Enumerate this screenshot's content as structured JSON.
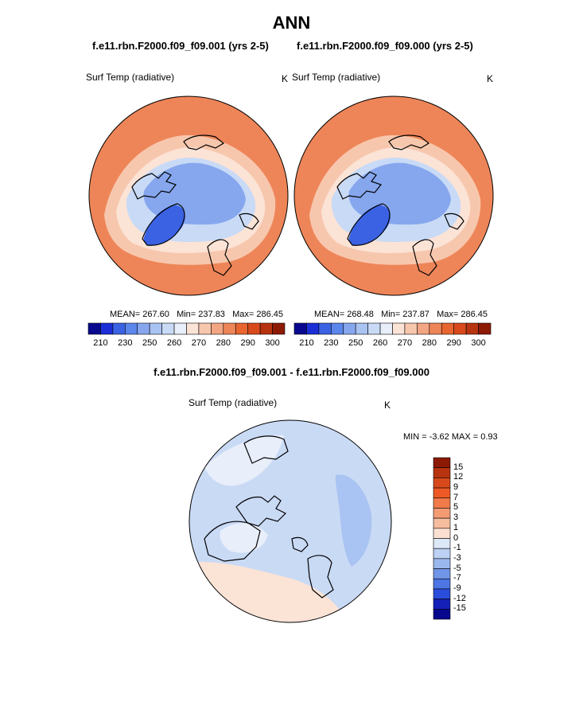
{
  "title": "ANN",
  "panels": [
    {
      "case_title": "f.e11.rbn.F2000.f09_f09.001 (yrs 2-5)",
      "variable": "Surf Temp (radiative)",
      "units": "K",
      "mean_label": "MEAN= 267.60",
      "min_label": "Min= 237.83",
      "max_label": "Max= 286.45"
    },
    {
      "case_title": "f.e11.rbn.F2000.f09_f09.000 (yrs 2-5)",
      "variable": "Surf Temp (radiative)",
      "units": "K",
      "mean_label": "MEAN= 268.48",
      "min_label": "Min= 237.87",
      "max_label": "Max= 286.45"
    }
  ],
  "colorbar": {
    "colors": [
      "#08088e",
      "#1c2fd6",
      "#3a62e3",
      "#5b86ec",
      "#86a7ee",
      "#a9c3f2",
      "#c8daf6",
      "#e8eefa",
      "#fbe3d6",
      "#f7c7ad",
      "#f3a684",
      "#ee8558",
      "#e9652f",
      "#d84a1c",
      "#b8330f",
      "#8c1a05"
    ],
    "ticks": [
      "210",
      "230",
      "250",
      "260",
      "270",
      "280",
      "290",
      "300"
    ]
  },
  "difference": {
    "title": "f.e11.rbn.F2000.f09_f09.001 - f.e11.rbn.F2000.f09_f09.000",
    "variable": "Surf Temp (radiative)",
    "units": "K",
    "minmax_label": "MIN =  -3.62 MAX =   0.93",
    "colorbar_labels": [
      "15",
      "12",
      "9",
      "7",
      "5",
      "3",
      "1",
      "0",
      "-1",
      "-3",
      "-5",
      "-7",
      "-9",
      "-12",
      "-15"
    ],
    "colorbar_colors": [
      "#8c1a05",
      "#b8330f",
      "#d84a1c",
      "#ee5a25",
      "#f17b4b",
      "#f49b74",
      "#f7bd9f",
      "#fbe0d2",
      "#dde8f7",
      "#bcd1f3",
      "#9ab8ee",
      "#7196e8",
      "#4d75e4",
      "#2b4ddb",
      "#1420b8",
      "#08088e"
    ]
  },
  "map_colors": {
    "warm_outer": "#ee8558",
    "warm_mid": "#f7c7ad",
    "warm_light": "#fbe3d6",
    "cool_light": "#c8daf6",
    "cool_mid": "#86a7ee",
    "cool_deep": "#3a62e3",
    "diff_base": "#c9daf5",
    "diff_light": "#e8eefa",
    "diff_warm": "#fbe3d6",
    "diff_cool": "#a9c3f2"
  }
}
